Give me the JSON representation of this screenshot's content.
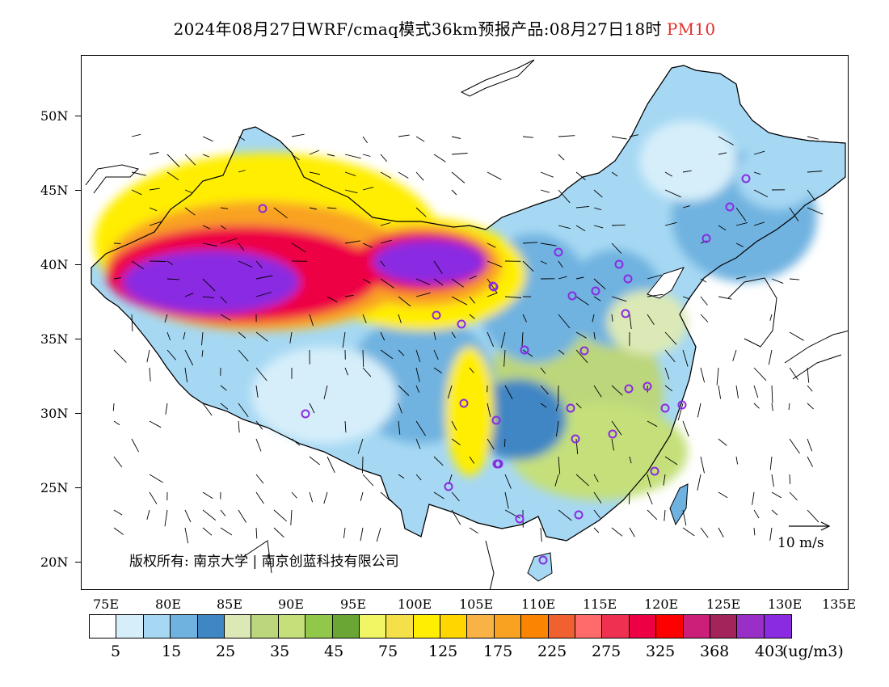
{
  "title": {
    "main": "2024年08月27日WRF/cmaq模式36km预报产品:08月27日18时",
    "species": "PM10",
    "species_color": "#e0302a"
  },
  "axes": {
    "lat_labels": [
      "50N",
      "45N",
      "40N",
      "35N",
      "30N",
      "25N",
      "20N"
    ],
    "lon_labels": [
      "75E",
      "80E",
      "85E",
      "90E",
      "95E",
      "100E",
      "105E",
      "110E",
      "115E",
      "120E",
      "125E",
      "130E",
      "135E"
    ]
  },
  "copyright": "版权所有: 南京大学 | 南京创蓝科技有限公司",
  "wind_reference": "10 m/s",
  "legend": {
    "labels": [
      "5",
      "15",
      "25",
      "35",
      "45",
      "75",
      "125",
      "175",
      "225",
      "275",
      "325",
      "368",
      "403"
    ],
    "unit": "(ug/m3)",
    "colors": [
      "#ffffff",
      "#d6eefa",
      "#a6d8f3",
      "#6fb2e0",
      "#3f86c4",
      "#dce9b6",
      "#bcd67c",
      "#c5e07a",
      "#92c84a",
      "#6aa633",
      "#f2f564",
      "#f5e04a",
      "#ffee00",
      "#ffd600",
      "#f8b246",
      "#f9a221",
      "#fb8500",
      "#f06030",
      "#ff6a6a",
      "#f03050",
      "#ee0044",
      "#ff0000",
      "#cc1f7a",
      "#a3245a",
      "#9a2fc8",
      "#8a2be2"
    ]
  },
  "colors": {
    "dust_core": "#8a2be2",
    "dust_high": "#ee0044",
    "dust_mid": "#f9a221",
    "dust_low": "#ffee00",
    "clean_blue": "#a6d8f3",
    "moderate_green": "#bcd67c"
  }
}
